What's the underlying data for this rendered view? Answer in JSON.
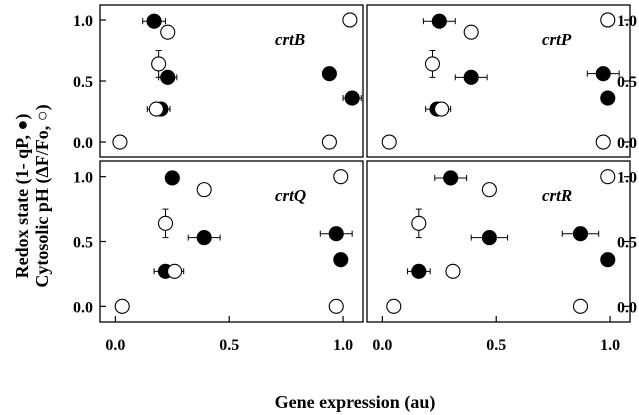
{
  "chart_data": {
    "type": "scatter",
    "xlabel": "Gene expression (au)",
    "ylabel_line1": "Redox state (1- qP, ●)",
    "ylabel_line2": "Cytosolic pH (ΔF/Fo, ○)",
    "x_ticks": [
      "0.0",
      "0.5",
      "1.0"
    ],
    "y_ticks": [
      "0.0",
      "0.5",
      "1.0"
    ],
    "xlim": [
      -0.05,
      1.07
    ],
    "ylim": [
      -0.09,
      1.09
    ],
    "grid": false,
    "marker_colors": {
      "filled": "#000000",
      "open": "#ffffff"
    },
    "panels": [
      {
        "label": "crtB",
        "series": [
          {
            "marker": "filled",
            "points": [
              {
                "x": 0.17,
                "y": 0.99,
                "xerr": 0.05
              },
              {
                "x": 0.23,
                "y": 0.53,
                "xerr": 0.04
              },
              {
                "x": 0.2,
                "y": 0.27,
                "xerr": 0.04
              },
              {
                "x": 0.94,
                "y": 0.56
              },
              {
                "x": 1.04,
                "y": 0.36,
                "xerr": 0.04
              }
            ]
          },
          {
            "marker": "open",
            "points": [
              {
                "x": 0.23,
                "y": 0.9
              },
              {
                "x": 0.19,
                "y": 0.64,
                "yerr": 0.11
              },
              {
                "x": 0.18,
                "y": 0.27,
                "xerr": 0.04
              },
              {
                "x": 0.02,
                "y": 0.0
              },
              {
                "x": 0.94,
                "y": 0.0
              },
              {
                "x": 1.03,
                "y": 1.0
              }
            ]
          }
        ]
      },
      {
        "label": "crtP",
        "series": [
          {
            "marker": "filled",
            "points": [
              {
                "x": 0.25,
                "y": 0.99,
                "xerr": 0.07
              },
              {
                "x": 0.39,
                "y": 0.53,
                "xerr": 0.07
              },
              {
                "x": 0.24,
                "y": 0.27,
                "xerr": 0.05
              },
              {
                "x": 0.97,
                "y": 0.56,
                "xerr": 0.07
              },
              {
                "x": 0.99,
                "y": 0.36
              }
            ]
          },
          {
            "marker": "open",
            "points": [
              {
                "x": 0.39,
                "y": 0.9
              },
              {
                "x": 0.22,
                "y": 0.64,
                "yerr": 0.11
              },
              {
                "x": 0.26,
                "y": 0.27,
                "xerr": 0.04
              },
              {
                "x": 0.03,
                "y": 0.0
              },
              {
                "x": 0.97,
                "y": 0.0
              },
              {
                "x": 0.99,
                "y": 1.0
              }
            ]
          }
        ]
      },
      {
        "label": "crtQ",
        "series": [
          {
            "marker": "filled",
            "points": [
              {
                "x": 0.25,
                "y": 0.99
              },
              {
                "x": 0.39,
                "y": 0.53,
                "xerr": 0.07
              },
              {
                "x": 0.22,
                "y": 0.27,
                "xerr": 0.05
              },
              {
                "x": 0.97,
                "y": 0.56,
                "xerr": 0.07
              },
              {
                "x": 0.99,
                "y": 0.36
              }
            ]
          },
          {
            "marker": "open",
            "points": [
              {
                "x": 0.39,
                "y": 0.9
              },
              {
                "x": 0.22,
                "y": 0.64,
                "yerr": 0.11
              },
              {
                "x": 0.26,
                "y": 0.27,
                "xerr": 0.04
              },
              {
                "x": 0.03,
                "y": 0.0
              },
              {
                "x": 0.97,
                "y": 0.0
              },
              {
                "x": 0.99,
                "y": 1.0
              }
            ]
          }
        ]
      },
      {
        "label": "crtR",
        "series": [
          {
            "marker": "filled",
            "points": [
              {
                "x": 0.3,
                "y": 0.99,
                "xerr": 0.07
              },
              {
                "x": 0.47,
                "y": 0.53,
                "xerr": 0.08
              },
              {
                "x": 0.16,
                "y": 0.27,
                "xerr": 0.05
              },
              {
                "x": 0.87,
                "y": 0.56,
                "xerr": 0.08
              },
              {
                "x": 0.99,
                "y": 0.36
              }
            ]
          },
          {
            "marker": "open",
            "points": [
              {
                "x": 0.47,
                "y": 0.9,
                "yerr": 0.05
              },
              {
                "x": 0.16,
                "y": 0.64,
                "yerr": 0.11
              },
              {
                "x": 0.31,
                "y": 0.27,
                "yerr": 0.04
              },
              {
                "x": 0.05,
                "y": 0.0
              },
              {
                "x": 0.87,
                "y": 0.0
              },
              {
                "x": 0.99,
                "y": 1.0
              }
            ]
          }
        ]
      }
    ]
  }
}
